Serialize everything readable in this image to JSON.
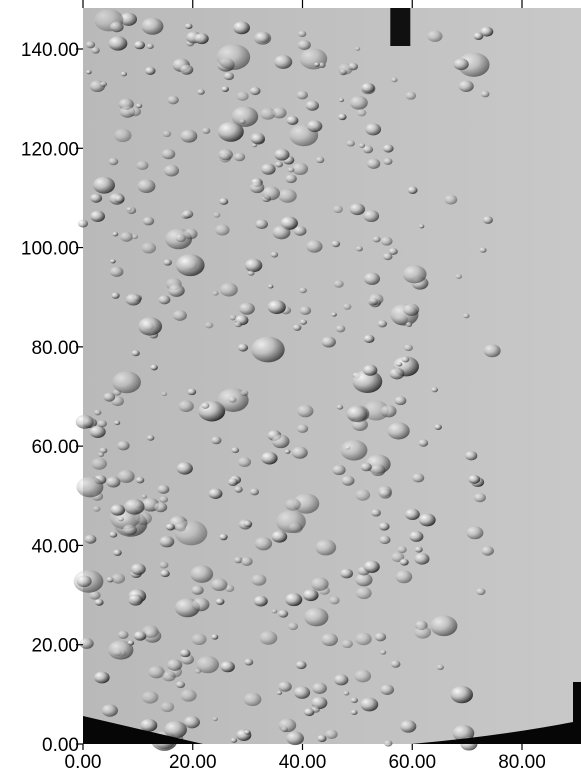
{
  "chart_data": {
    "type": "heatmap",
    "title": "",
    "xlabel": "",
    "ylabel": "",
    "xlim": [
      0,
      91
    ],
    "ylim": [
      0,
      148
    ],
    "x_ticks": [
      0,
      20,
      40,
      60,
      80
    ],
    "y_ticks": [
      0,
      20,
      40,
      60,
      80,
      100,
      120,
      140
    ],
    "x_tick_labels": [
      "0.00",
      "20.00",
      "40.00",
      "60.00",
      "80.00"
    ],
    "y_tick_labels": [
      "0.00",
      "20.00",
      "40.00",
      "60.00",
      "80.00",
      "100.00",
      "120.00",
      "140.00"
    ],
    "colormap": "grayscale shaded relief",
    "background_color": "#c4c4c4",
    "grid": false
  }
}
